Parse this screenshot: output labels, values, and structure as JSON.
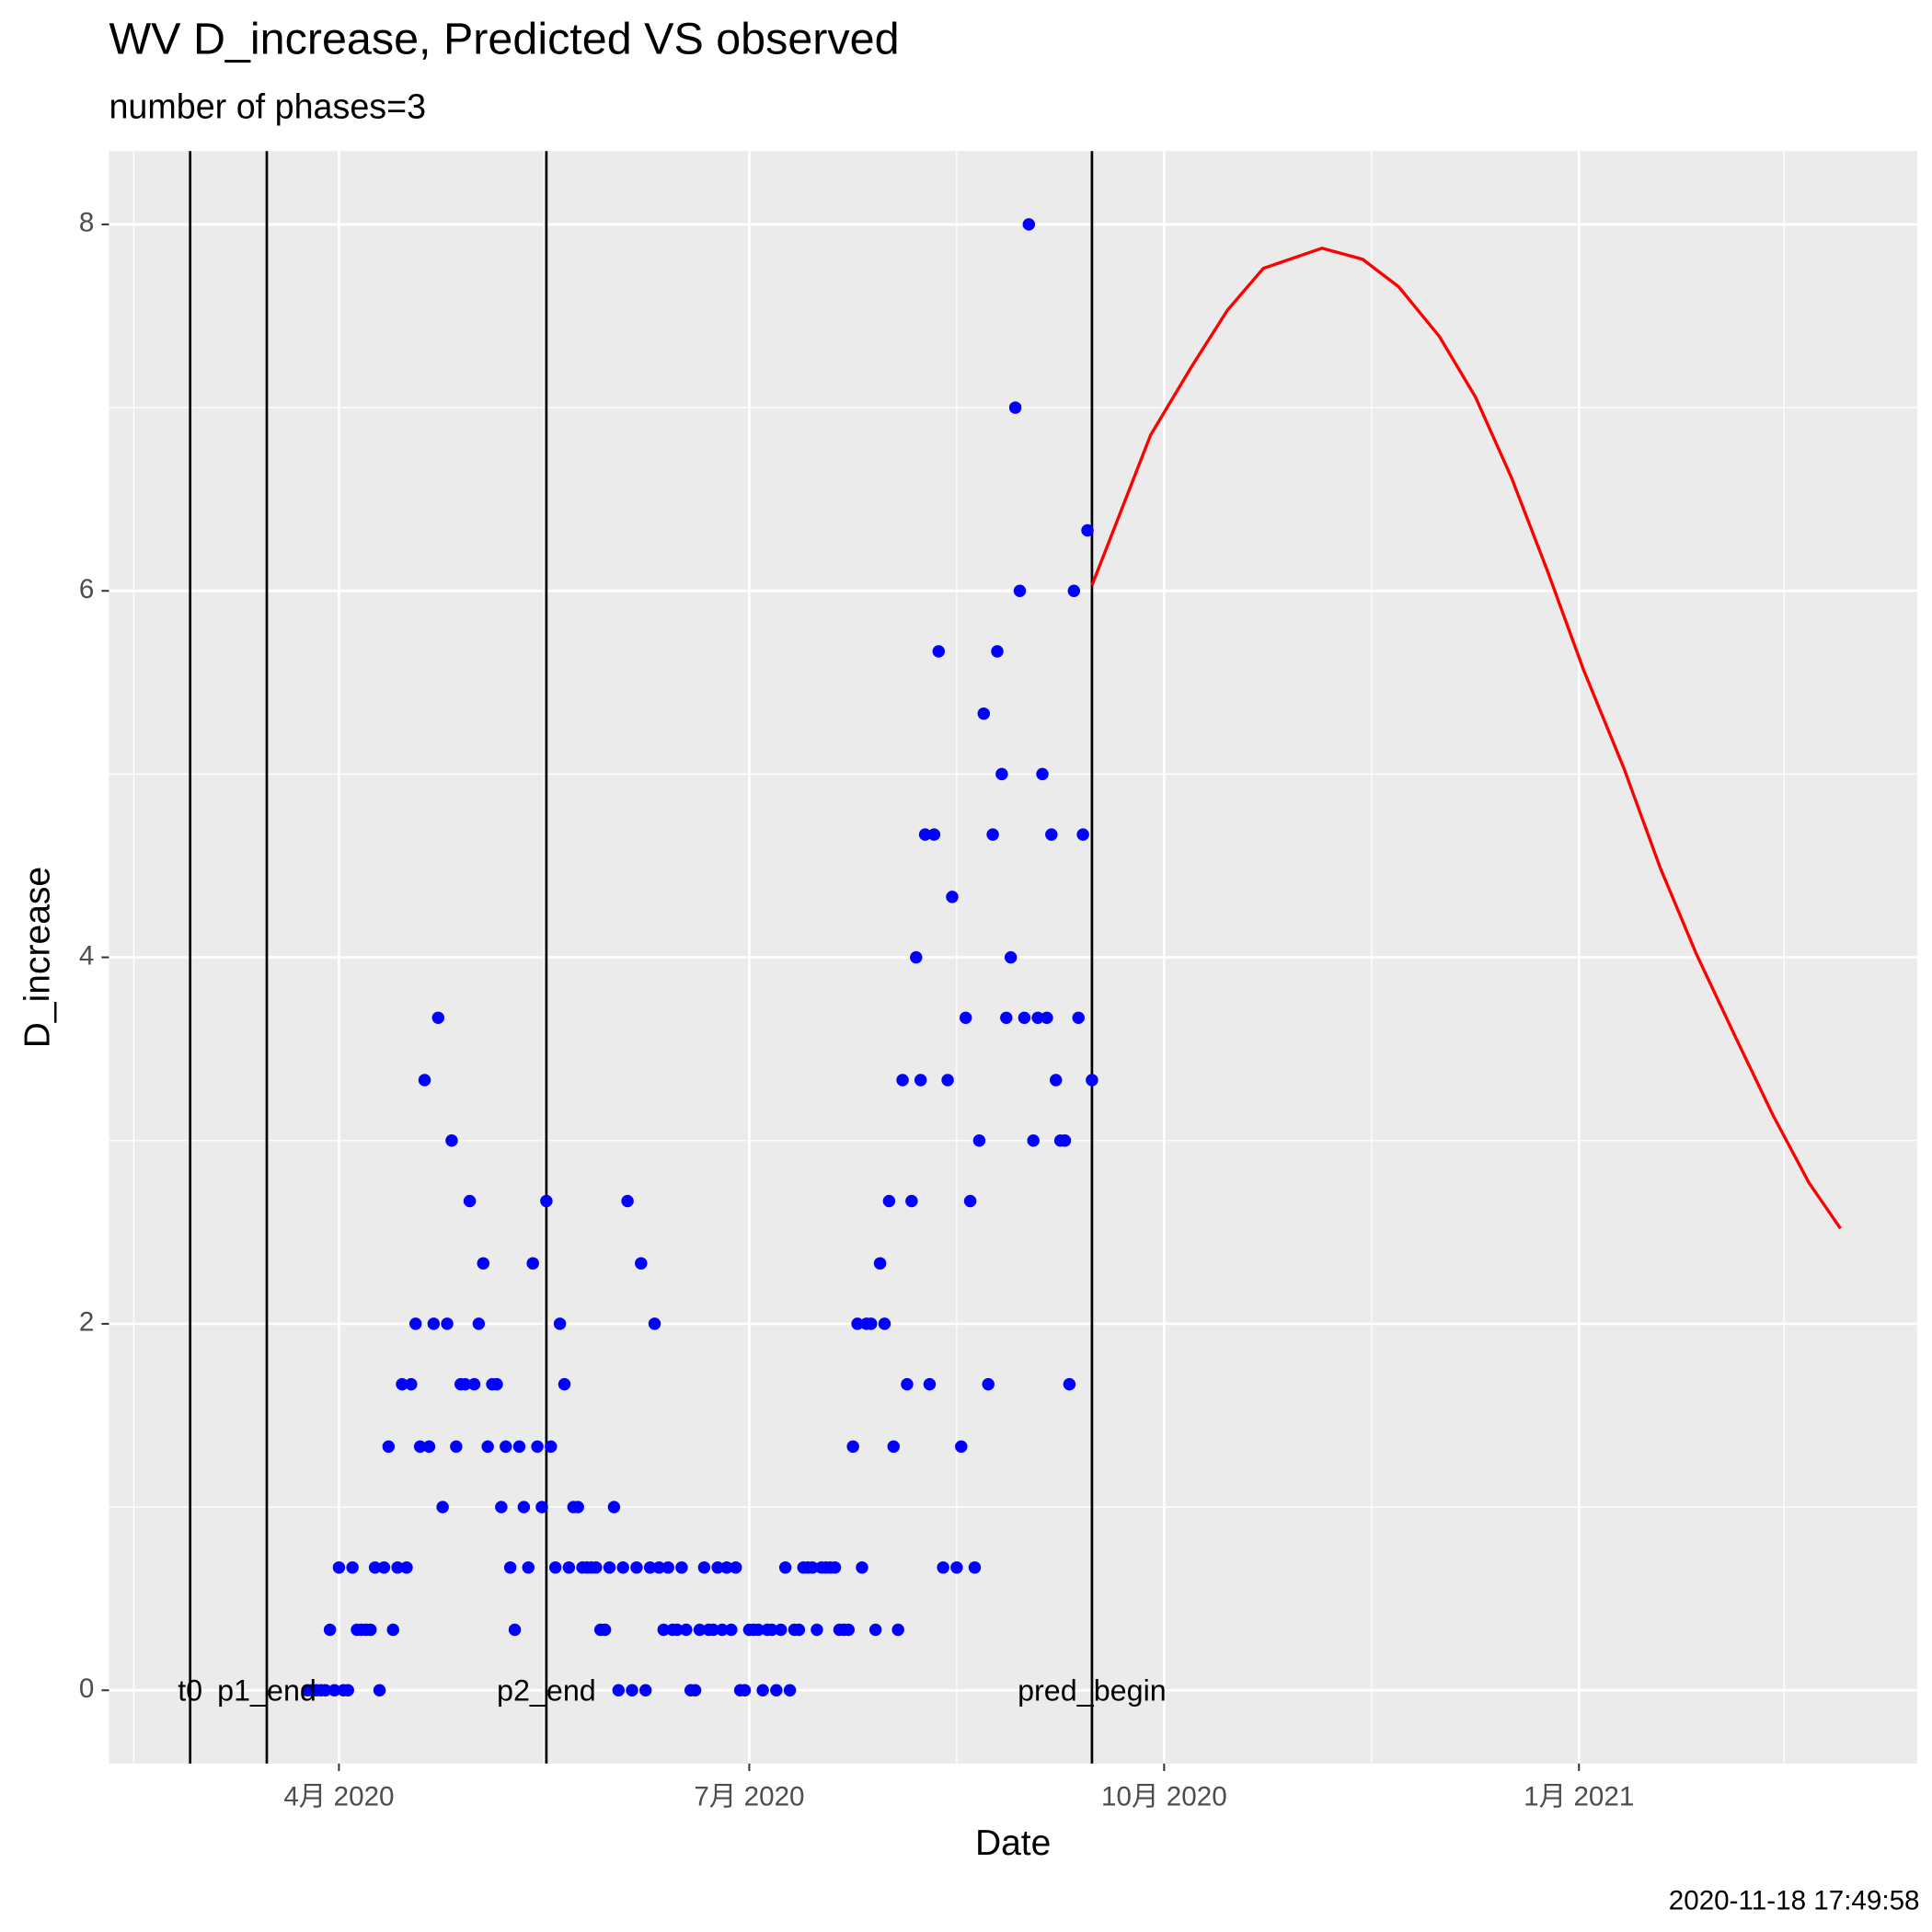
{
  "chart_data": {
    "type": "scatter",
    "title": "WV D_increase, Predicted VS observed",
    "subtitle": "number of phases=3",
    "xlabel": "Date",
    "ylabel": "D_increase",
    "caption": "2020-11-18 17:49:58",
    "xlim": [
      "2020-02-10",
      "2021-03-17"
    ],
    "xticks": [
      {
        "value": "2020-04-01",
        "label": "4月 2020"
      },
      {
        "value": "2020-07-01",
        "label": "7月 2020"
      },
      {
        "value": "2020-10-01",
        "label": "10月 2020"
      },
      {
        "value": "2021-01-01",
        "label": "1月 2021"
      }
    ],
    "ylim": [
      -0.4,
      8.4
    ],
    "yticks": [
      0,
      2,
      4,
      6,
      8
    ],
    "grid": true,
    "vlines": [
      {
        "x": "2020-02-28",
        "label": "t0"
      },
      {
        "x": "2020-03-16",
        "label": "p1_end"
      },
      {
        "x": "2020-05-17",
        "label": "p2_end"
      },
      {
        "x": "2020-09-15",
        "label": "pred_begin"
      }
    ],
    "series": [
      {
        "type": "scatter",
        "color": "#0000ff",
        "x": [
          "2020-03-25",
          "2020-03-26",
          "2020-03-27",
          "2020-03-28",
          "2020-03-29",
          "2020-03-30",
          "2020-03-31",
          "2020-04-01",
          "2020-04-02",
          "2020-04-03",
          "2020-04-04",
          "2020-04-05",
          "2020-04-06",
          "2020-04-07",
          "2020-04-08",
          "2020-04-09",
          "2020-04-10",
          "2020-04-11",
          "2020-04-12",
          "2020-04-13",
          "2020-04-14",
          "2020-04-15",
          "2020-04-16",
          "2020-04-17",
          "2020-04-18",
          "2020-04-19",
          "2020-04-20",
          "2020-04-21",
          "2020-04-22",
          "2020-04-23",
          "2020-04-24",
          "2020-04-25",
          "2020-04-26",
          "2020-04-27",
          "2020-04-28",
          "2020-04-29",
          "2020-04-30",
          "2020-05-01",
          "2020-05-02",
          "2020-05-03",
          "2020-05-04",
          "2020-05-05",
          "2020-05-06",
          "2020-05-07",
          "2020-05-08",
          "2020-05-09",
          "2020-05-10",
          "2020-05-11",
          "2020-05-12",
          "2020-05-13",
          "2020-05-14",
          "2020-05-15",
          "2020-05-16",
          "2020-05-17",
          "2020-05-18",
          "2020-05-19",
          "2020-05-20",
          "2020-05-21",
          "2020-05-22",
          "2020-05-23",
          "2020-05-24",
          "2020-05-25",
          "2020-05-26",
          "2020-05-27",
          "2020-05-28",
          "2020-05-29",
          "2020-05-30",
          "2020-05-31",
          "2020-06-01",
          "2020-06-02",
          "2020-06-03",
          "2020-06-04",
          "2020-06-05",
          "2020-06-06",
          "2020-06-07",
          "2020-06-08",
          "2020-06-09",
          "2020-06-10",
          "2020-06-11",
          "2020-06-12",
          "2020-06-13",
          "2020-06-14",
          "2020-06-15",
          "2020-06-16",
          "2020-06-17",
          "2020-06-18",
          "2020-06-19",
          "2020-06-20",
          "2020-06-21",
          "2020-06-22",
          "2020-06-23",
          "2020-06-24",
          "2020-06-25",
          "2020-06-26",
          "2020-06-27",
          "2020-06-28",
          "2020-06-29",
          "2020-06-30",
          "2020-07-01",
          "2020-07-02",
          "2020-07-03",
          "2020-07-04",
          "2020-07-05",
          "2020-07-06",
          "2020-07-07",
          "2020-07-08",
          "2020-07-09",
          "2020-07-10",
          "2020-07-11",
          "2020-07-12",
          "2020-07-13",
          "2020-07-14",
          "2020-07-15",
          "2020-07-16",
          "2020-07-17",
          "2020-07-18",
          "2020-07-19",
          "2020-07-20",
          "2020-07-21",
          "2020-07-22",
          "2020-07-23",
          "2020-07-24",
          "2020-07-25",
          "2020-07-26",
          "2020-07-27",
          "2020-07-28",
          "2020-07-29",
          "2020-07-30",
          "2020-07-31",
          "2020-08-01",
          "2020-08-02",
          "2020-08-03",
          "2020-08-04",
          "2020-08-05",
          "2020-08-06",
          "2020-08-07",
          "2020-08-08",
          "2020-08-09",
          "2020-08-10",
          "2020-08-11",
          "2020-08-12",
          "2020-08-13",
          "2020-08-14",
          "2020-08-15",
          "2020-08-16",
          "2020-08-17",
          "2020-08-18",
          "2020-08-19",
          "2020-08-20",
          "2020-08-21",
          "2020-08-22",
          "2020-08-23",
          "2020-08-24",
          "2020-08-25",
          "2020-08-26",
          "2020-08-27",
          "2020-08-28",
          "2020-08-29",
          "2020-08-30",
          "2020-08-31",
          "2020-09-01",
          "2020-09-02",
          "2020-09-03",
          "2020-09-04",
          "2020-09-05",
          "2020-09-06",
          "2020-09-07",
          "2020-09-08",
          "2020-09-09",
          "2020-09-10",
          "2020-09-11",
          "2020-09-12",
          "2020-09-13",
          "2020-09-14",
          "2020-09-15"
        ],
        "values": [
          0,
          0,
          0,
          0,
          0,
          0.33,
          0,
          0.67,
          0,
          0,
          0.67,
          0.33,
          0.33,
          0.33,
          0.33,
          0.67,
          0,
          0.67,
          1.33,
          0.33,
          0.67,
          1.67,
          0.67,
          1.67,
          2,
          1.33,
          3.33,
          1.33,
          2,
          3.67,
          1,
          2,
          3,
          1.33,
          1.67,
          1.67,
          2.67,
          1.67,
          2,
          2.33,
          1.33,
          1.67,
          1.67,
          1,
          1.33,
          0.67,
          0.33,
          1.33,
          1,
          0.67,
          2.33,
          1.33,
          1,
          2.67,
          1.33,
          0.67,
          2,
          1.67,
          0.67,
          1,
          1,
          0.67,
          0.67,
          0.67,
          0.67,
          0.33,
          0.33,
          0.67,
          1,
          0,
          0.67,
          2.67,
          0,
          0.67,
          2.33,
          0,
          0.67,
          2,
          0.67,
          0.33,
          0.67,
          0.33,
          0.33,
          0.67,
          0.33,
          0,
          0,
          0.33,
          0.67,
          0.33,
          0.33,
          0.67,
          0.33,
          0.67,
          0.33,
          0.67,
          0,
          0,
          0.33,
          0.33,
          0.33,
          0,
          0.33,
          0.33,
          0,
          0.33,
          0.67,
          0,
          0.33,
          0.33,
          0.67,
          0.67,
          0.67,
          0.33,
          0.67,
          0.67,
          0.67,
          0.67,
          0.33,
          0.33,
          0.33,
          1.33,
          2,
          0.67,
          2,
          2,
          0.33,
          2.33,
          2,
          2.67,
          1.33,
          0.33,
          3.33,
          1.67,
          2.67,
          4,
          3.33,
          4.67,
          1.67,
          4.67,
          5.67,
          0.67,
          3.33,
          4.33,
          0.67,
          1.33,
          3.67,
          2.67,
          0.67,
          3,
          5.33,
          1.67,
          4.67,
          5.67,
          5,
          3.67,
          4,
          7,
          6,
          3.67,
          8,
          3,
          3.67,
          5,
          3.67,
          4.67,
          3.33,
          3,
          3,
          1.67,
          6,
          3.67,
          4.67,
          6.33,
          3.33
        ]
      },
      {
        "type": "line",
        "color": "#ff0000",
        "x": [
          "2020-09-15",
          "2020-09-28",
          "2020-10-07",
          "2020-10-15",
          "2020-10-23",
          "2020-11-05",
          "2020-11-14",
          "2020-11-22",
          "2020-12-01",
          "2020-12-09",
          "2020-12-17",
          "2020-12-25",
          "2021-01-02",
          "2021-01-11",
          "2021-01-19",
          "2021-01-27",
          "2021-02-05",
          "2021-02-13",
          "2021-02-21",
          "2021-02-28"
        ],
        "values": [
          6.03,
          6.85,
          7.22,
          7.53,
          7.76,
          7.87,
          7.81,
          7.66,
          7.39,
          7.06,
          6.62,
          6.11,
          5.57,
          5.03,
          4.49,
          4.02,
          3.55,
          3.14,
          2.77,
          2.52
        ]
      }
    ]
  }
}
